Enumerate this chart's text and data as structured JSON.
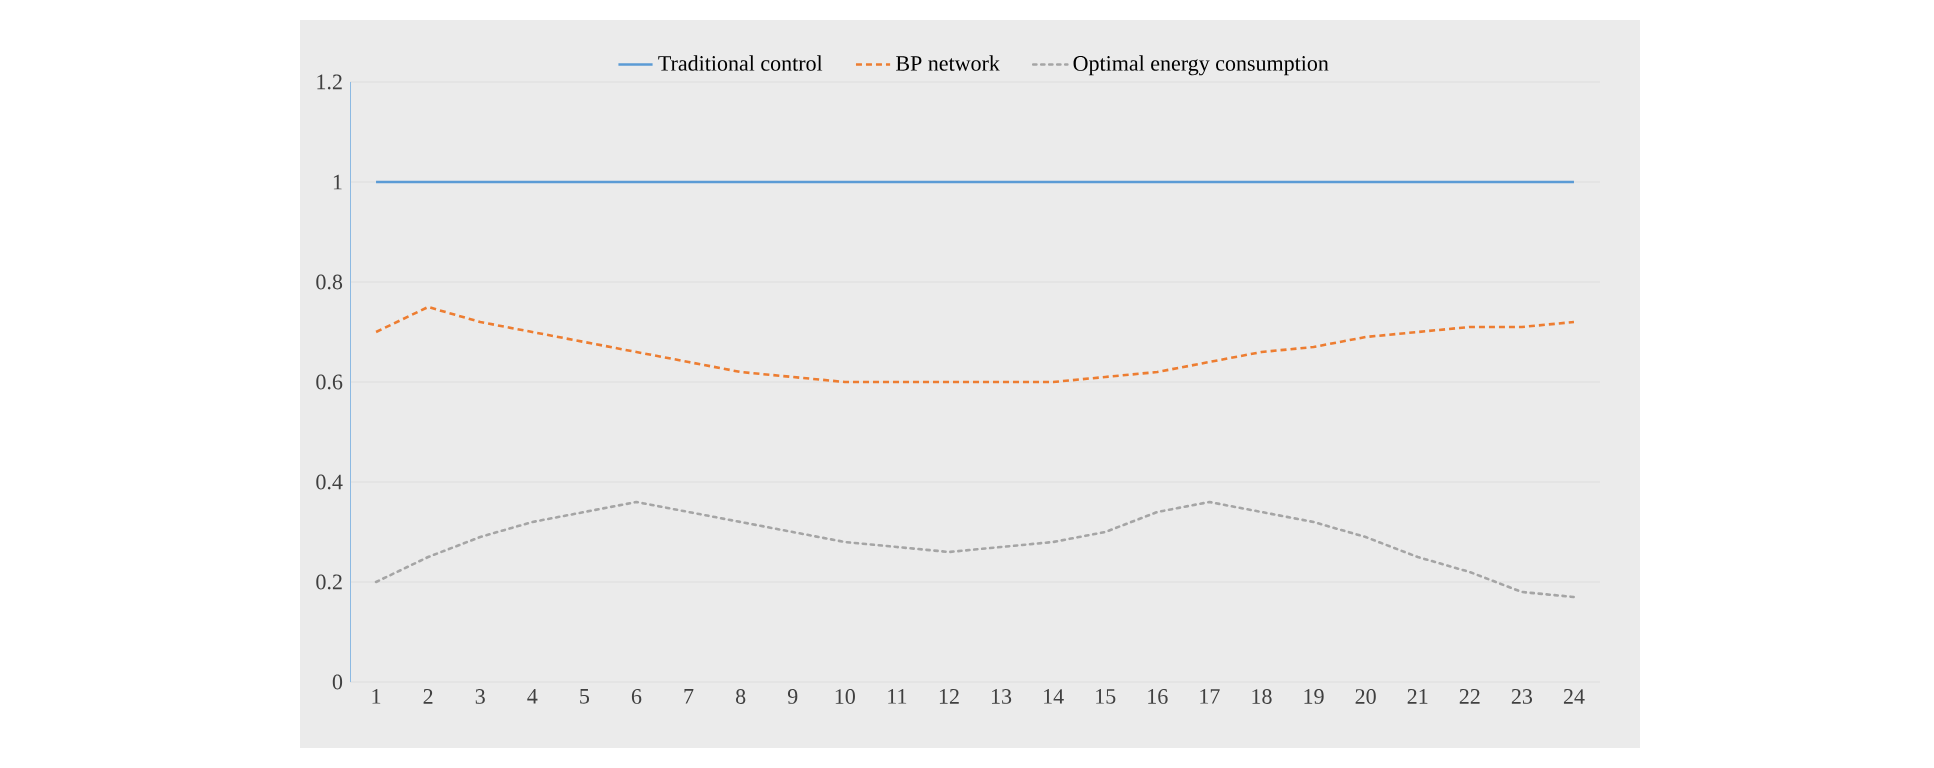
{
  "chart_data": {
    "type": "line",
    "categories": [
      "1",
      "2",
      "3",
      "4",
      "5",
      "6",
      "7",
      "8",
      "9",
      "10",
      "11",
      "12",
      "13",
      "14",
      "15",
      "16",
      "17",
      "18",
      "19",
      "20",
      "21",
      "22",
      "23",
      "24"
    ],
    "series": [
      {
        "name": "Traditional control",
        "color": "#5b9bd5",
        "line_style": "solid",
        "values": [
          1,
          1,
          1,
          1,
          1,
          1,
          1,
          1,
          1,
          1,
          1,
          1,
          1,
          1,
          1,
          1,
          1,
          1,
          1,
          1,
          1,
          1,
          1,
          1
        ]
      },
      {
        "name": "BP network",
        "color": "#ed7d31",
        "line_style": "dashed",
        "values": [
          0.7,
          0.75,
          0.72,
          0.7,
          0.68,
          0.66,
          0.64,
          0.62,
          0.61,
          0.6,
          0.6,
          0.6,
          0.6,
          0.6,
          0.61,
          0.62,
          0.64,
          0.66,
          0.67,
          0.69,
          0.7,
          0.71,
          0.71,
          0.72
        ]
      },
      {
        "name": "Optimal energy consumption",
        "color": "#a5a5a5",
        "line_style": "dotted",
        "values": [
          0.2,
          0.25,
          0.29,
          0.32,
          0.34,
          0.36,
          0.34,
          0.32,
          0.3,
          0.28,
          0.27,
          0.26,
          0.27,
          0.28,
          0.3,
          0.34,
          0.36,
          0.34,
          0.32,
          0.29,
          0.25,
          0.22,
          0.18,
          0.17
        ]
      }
    ],
    "ylim": [
      0,
      1.2
    ],
    "yticks": [
      0,
      0.2,
      0.4,
      0.6,
      0.8,
      1,
      1.2
    ],
    "grid": "y",
    "legend": "top",
    "marker": "none"
  }
}
